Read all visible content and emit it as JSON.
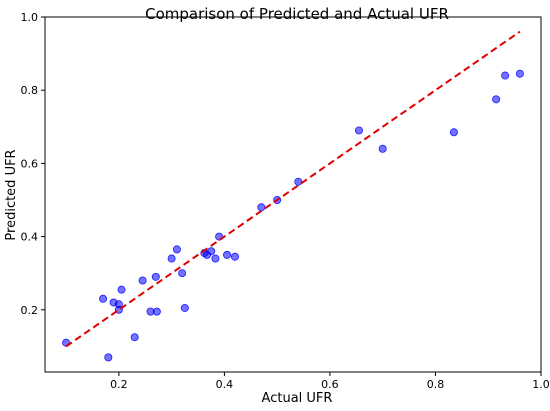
{
  "chart_data": {
    "type": "scatter",
    "title": "Comparison of Predicted and Actual UFR",
    "xlabel": "Actual UFR",
    "ylabel": "Predicted UFR",
    "xlim": [
      0.06,
      1.0
    ],
    "ylim": [
      0.03,
      1.0
    ],
    "xticks": [
      0.2,
      0.4,
      0.6,
      0.8,
      1.0
    ],
    "xtick_labels": [
      "0.2",
      "0.4",
      "0.6",
      "0.8",
      "1.0"
    ],
    "yticks": [
      0.2,
      0.4,
      0.6,
      0.8,
      1.0
    ],
    "ytick_labels": [
      "0.2",
      "0.4",
      "0.6",
      "0.8",
      "1.0"
    ],
    "grid": false,
    "colors": {
      "points": "#0000ff",
      "point_alpha": 0.55,
      "reference_line": "#e00000"
    },
    "series": [
      {
        "values": [
          {
            "x": 0.1,
            "y": 0.11
          },
          {
            "x": 0.17,
            "y": 0.23
          },
          {
            "x": 0.18,
            "y": 0.07
          },
          {
            "x": 0.19,
            "y": 0.22
          },
          {
            "x": 0.2,
            "y": 0.215
          },
          {
            "x": 0.2,
            "y": 0.2
          },
          {
            "x": 0.205,
            "y": 0.255
          },
          {
            "x": 0.23,
            "y": 0.125
          },
          {
            "x": 0.245,
            "y": 0.28
          },
          {
            "x": 0.26,
            "y": 0.195
          },
          {
            "x": 0.27,
            "y": 0.29
          },
          {
            "x": 0.272,
            "y": 0.195
          },
          {
            "x": 0.3,
            "y": 0.34
          },
          {
            "x": 0.31,
            "y": 0.365
          },
          {
            "x": 0.32,
            "y": 0.3
          },
          {
            "x": 0.325,
            "y": 0.205
          },
          {
            "x": 0.362,
            "y": 0.355
          },
          {
            "x": 0.367,
            "y": 0.35
          },
          {
            "x": 0.375,
            "y": 0.36
          },
          {
            "x": 0.383,
            "y": 0.34
          },
          {
            "x": 0.39,
            "y": 0.4
          },
          {
            "x": 0.405,
            "y": 0.35
          },
          {
            "x": 0.42,
            "y": 0.345
          },
          {
            "x": 0.47,
            "y": 0.48
          },
          {
            "x": 0.5,
            "y": 0.5
          },
          {
            "x": 0.54,
            "y": 0.55
          },
          {
            "x": 0.655,
            "y": 0.69
          },
          {
            "x": 0.7,
            "y": 0.64
          },
          {
            "x": 0.835,
            "y": 0.685
          },
          {
            "x": 0.915,
            "y": 0.775
          },
          {
            "x": 0.932,
            "y": 0.84
          },
          {
            "x": 0.96,
            "y": 0.845
          }
        ]
      }
    ],
    "reference_line": {
      "style": "dashed",
      "x": [
        0.1,
        0.96
      ],
      "y": [
        0.1,
        0.96
      ]
    }
  }
}
